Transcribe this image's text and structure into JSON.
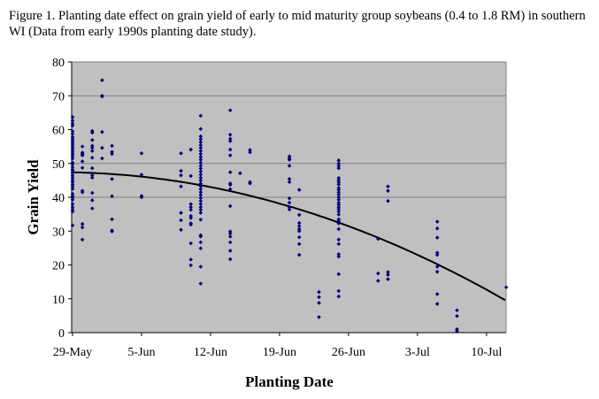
{
  "chart_data": {
    "type": "scatter",
    "title": "Figure 1. Planting date effect on grain yield of early to mid maturity group soybeans (0.4 to 1.8 RM) in southern WI (Data from early 1990s planting date study).",
    "xlabel": "Planting Date",
    "ylabel": "Grain Yield",
    "ylim": [
      0,
      80
    ],
    "yticks": [
      0,
      10,
      20,
      30,
      40,
      50,
      60,
      70,
      80
    ],
    "xlim": [
      "05-29",
      "07-12"
    ],
    "xticks": [
      {
        "date": "05-29",
        "label": "29-May"
      },
      {
        "date": "06-05",
        "label": "5-Jun"
      },
      {
        "date": "06-12",
        "label": "12-Jun"
      },
      {
        "date": "06-19",
        "label": "19-Jun"
      },
      {
        "date": "06-26",
        "label": "26-Jun"
      },
      {
        "date": "07-03",
        "label": "3-Jul"
      },
      {
        "date": "07-10",
        "label": "10-Jul"
      }
    ],
    "gridlines_y": [
      40,
      50,
      70
    ],
    "colors": {
      "plot_bg": "#c0c0c0",
      "marker": "#000080",
      "trend": "#000000",
      "grid": "#808080"
    },
    "series": [
      {
        "date": "05-29",
        "values": [
          63.7,
          62.6,
          61.8,
          61.2,
          59.5,
          58.7,
          57.8,
          57.2,
          56.6,
          56.0,
          55.4,
          54.7,
          54.1,
          53.4,
          52.8,
          52.2,
          51.5,
          50.2,
          49.8,
          48.9,
          48.2,
          47.8,
          47.2,
          46.4,
          45.8,
          45.1,
          44.5,
          43.8,
          43.2,
          42.5,
          41.0,
          40.4,
          39.9,
          39.3,
          38.0,
          37.1,
          36.4,
          35.8,
          31.7
        ]
      },
      {
        "date": "05-30",
        "values": [
          55.0,
          53.2,
          52.8,
          52.4,
          50.6,
          48.7,
          41.9,
          41.5,
          32.1,
          31.1,
          27.5
        ]
      },
      {
        "date": "05-31",
        "values": [
          59.6,
          59.1,
          56.9,
          55.2,
          54.6,
          53.7,
          51.7,
          48.6,
          46.5,
          45.8,
          41.3,
          39.1,
          36.7
        ]
      },
      {
        "date": "06-01",
        "values": [
          74.6,
          70.0,
          69.8,
          59.3,
          54.6,
          51.5
        ]
      },
      {
        "date": "06-02",
        "values": [
          55.2,
          53.4,
          52.8,
          45.4,
          40.3,
          33.5,
          30.2,
          29.9
        ]
      },
      {
        "date": "06-05",
        "values": [
          53.0,
          46.7,
          40.4,
          40.0
        ]
      },
      {
        "date": "06-09",
        "values": [
          53.0,
          47.8,
          46.5,
          43.2,
          35.4,
          33.2,
          30.4
        ]
      },
      {
        "date": "06-10",
        "values": [
          54.1,
          46.3,
          38.0,
          37.1,
          36.3,
          34.5,
          33.9,
          32.3,
          31.9,
          26.4,
          21.6,
          19.9
        ]
      },
      {
        "date": "06-11",
        "values": [
          64.1,
          60.2,
          58.0,
          57.2,
          56.3,
          55.4,
          54.6,
          53.7,
          52.8,
          51.9,
          51.1,
          50.2,
          49.3,
          48.5,
          47.6,
          46.7,
          45.8,
          45.0,
          44.1,
          43.2,
          42.4,
          41.5,
          40.7,
          39.8,
          38.9,
          38.0,
          37.1,
          36.3,
          35.4,
          33.4,
          28.8,
          28.4,
          26.7,
          24.9,
          19.5,
          14.5
        ]
      },
      {
        "date": "06-14",
        "values": [
          65.7,
          58.5,
          57.3,
          56.6,
          54.1,
          52.4,
          47.4,
          44.1,
          43.7,
          42.4,
          37.4,
          29.9,
          29.3,
          28.4,
          26.7,
          24.2,
          21.7
        ]
      },
      {
        "date": "06-15",
        "values": [
          47.1
        ]
      },
      {
        "date": "06-16",
        "values": [
          54.0,
          53.3,
          44.5,
          44.1
        ]
      },
      {
        "date": "06-20",
        "values": [
          52.1,
          51.5,
          51.1,
          49.3,
          45.4,
          44.5,
          39.7,
          38.4,
          37.1,
          36.4
        ]
      },
      {
        "date": "06-21",
        "values": [
          42.2,
          34.8,
          32.4,
          31.5,
          30.6,
          30.0,
          28.2,
          26.2,
          23.0
        ]
      },
      {
        "date": "06-23",
        "values": [
          12.0,
          10.5,
          8.8,
          4.6
        ]
      },
      {
        "date": "06-25",
        "values": [
          50.9,
          50.0,
          49.3,
          48.6,
          45.7,
          45.0,
          44.4,
          43.8,
          42.8,
          42.2,
          41.5,
          40.8,
          40.0,
          39.3,
          38.4,
          37.8,
          37.1,
          36.5,
          35.8,
          34.9,
          33.5,
          32.9,
          32.3,
          30.6,
          27.5,
          26.2,
          23.2,
          22.5,
          17.3,
          12.3,
          10.7
        ]
      },
      {
        "date": "06-29",
        "values": [
          27.7,
          17.5,
          15.3
        ]
      },
      {
        "date": "06-30",
        "values": [
          43.2,
          41.9,
          38.9,
          17.9,
          17.1,
          15.8
        ]
      },
      {
        "date": "07-05",
        "values": [
          32.8,
          30.8,
          28.1,
          23.6,
          23.0,
          19.5,
          18.0,
          11.4,
          8.5
        ]
      },
      {
        "date": "07-07",
        "values": [
          6.6,
          4.9,
          1.0,
          0.4
        ]
      },
      {
        "date": "07-12",
        "values": [
          13.4
        ]
      }
    ],
    "trendline": {
      "type": "polynomial-2",
      "from": "05-29",
      "to": "07-12",
      "points": [
        {
          "date": "05-29",
          "value": 47.4
        },
        {
          "date": "06-11",
          "value": 43.5
        },
        {
          "date": "06-25",
          "value": 32.6
        },
        {
          "date": "07-12",
          "value": 9.4
        }
      ]
    }
  }
}
